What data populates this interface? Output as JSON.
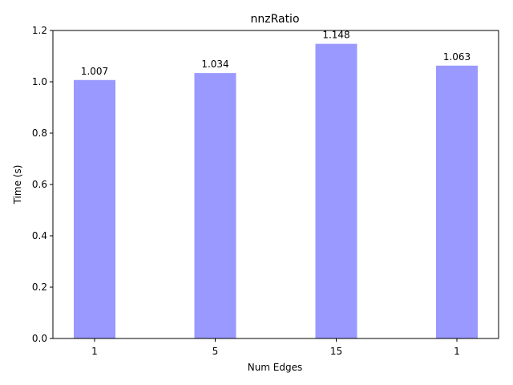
{
  "chart_data": {
    "type": "bar",
    "title": "nnzRatio",
    "xlabel": "Num Edges",
    "ylabel": "Time (s)",
    "categories": [
      "1",
      "5",
      "15",
      "1"
    ],
    "values": [
      1.007,
      1.034,
      1.148,
      1.063
    ],
    "data_labels": [
      "1.007",
      "1.034",
      "1.148",
      "1.063"
    ],
    "ylim": [
      0,
      1.2
    ],
    "yticks": [
      0.0,
      0.2,
      0.4,
      0.6,
      0.8,
      1.0,
      1.2
    ],
    "ytick_labels": [
      "0.0",
      "0.2",
      "0.4",
      "0.6",
      "0.8",
      "1.0",
      "1.2"
    ],
    "grid": false,
    "legend": "none",
    "bar_color": "#9999ff"
  }
}
